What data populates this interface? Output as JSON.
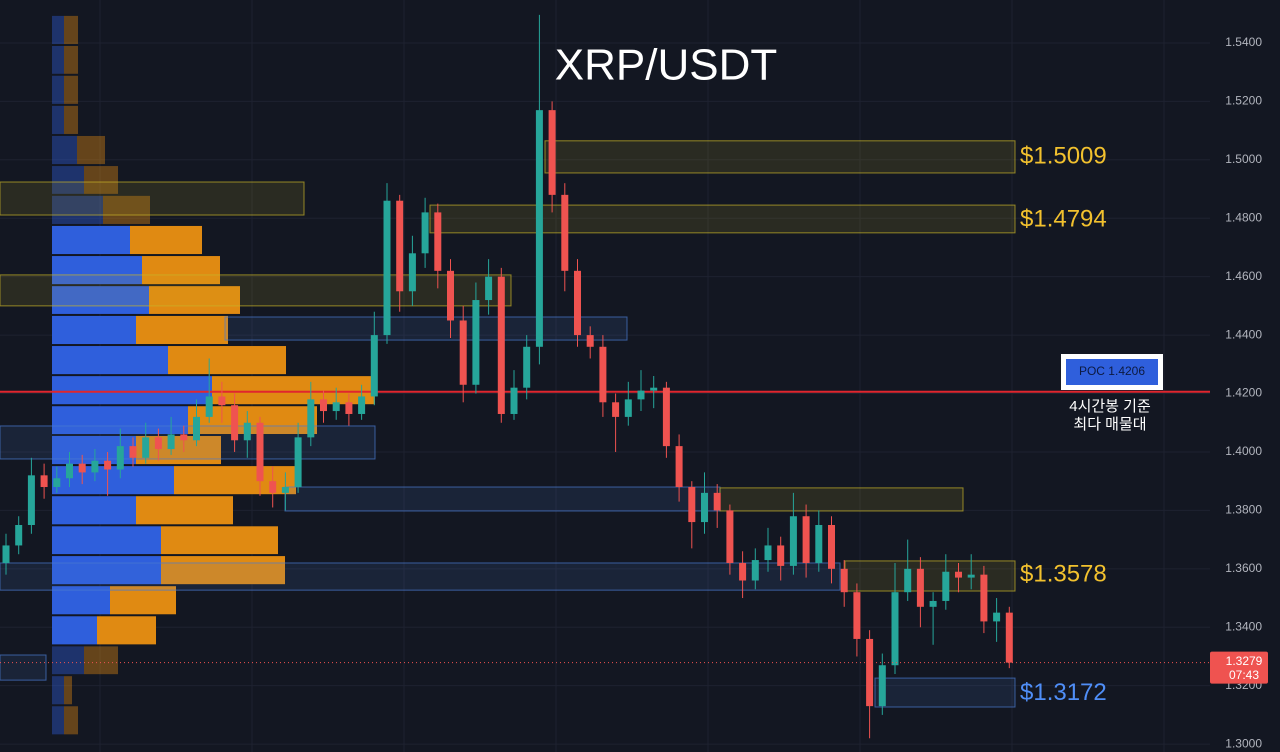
{
  "chart_data": {
    "type": "candlestick",
    "title": "XRP/USDT",
    "up_color": "#26a69a",
    "down_color": "#ef5350",
    "ylim": [
      1.2973,
      1.5547
    ],
    "yticks": [
      {
        "value": 1.3,
        "label": "1.3000"
      },
      {
        "value": 1.32,
        "label": "1.3200"
      },
      {
        "value": 1.34,
        "label": "1.3400"
      },
      {
        "value": 1.36,
        "label": "1.3600"
      },
      {
        "value": 1.38,
        "label": "1.3800"
      },
      {
        "value": 1.4,
        "label": "1.4000"
      },
      {
        "value": 1.42,
        "label": "1.4200"
      },
      {
        "value": 1.44,
        "label": "1.4400"
      },
      {
        "value": 1.46,
        "label": "1.4600"
      },
      {
        "value": 1.48,
        "label": "1.4800"
      },
      {
        "value": 1.5,
        "label": "1.5000"
      },
      {
        "value": 1.52,
        "label": "1.5200"
      },
      {
        "value": 1.54,
        "label": "1.5400"
      }
    ],
    "grid": true,
    "candles": [
      [
        1.362,
        1.372,
        1.358,
        1.368
      ],
      [
        1.368,
        1.378,
        1.365,
        1.375
      ],
      [
        1.375,
        1.398,
        1.372,
        1.392
      ],
      [
        1.392,
        1.396,
        1.384,
        1.388
      ],
      [
        1.388,
        1.395,
        1.386,
        1.391
      ],
      [
        1.391,
        1.4,
        1.388,
        1.396
      ],
      [
        1.396,
        1.399,
        1.389,
        1.393
      ],
      [
        1.393,
        1.401,
        1.39,
        1.397
      ],
      [
        1.397,
        1.4,
        1.385,
        1.394
      ],
      [
        1.394,
        1.408,
        1.391,
        1.402
      ],
      [
        1.402,
        1.405,
        1.395,
        1.398
      ],
      [
        1.398,
        1.41,
        1.396,
        1.405
      ],
      [
        1.405,
        1.408,
        1.397,
        1.401
      ],
      [
        1.401,
        1.412,
        1.399,
        1.406
      ],
      [
        1.406,
        1.409,
        1.4,
        1.404
      ],
      [
        1.404,
        1.418,
        1.402,
        1.412
      ],
      [
        1.412,
        1.432,
        1.41,
        1.419
      ],
      [
        1.419,
        1.424,
        1.41,
        1.416
      ],
      [
        1.416,
        1.42,
        1.4,
        1.404
      ],
      [
        1.404,
        1.414,
        1.398,
        1.41
      ],
      [
        1.41,
        1.412,
        1.385,
        1.39
      ],
      [
        1.39,
        1.395,
        1.381,
        1.386
      ],
      [
        1.386,
        1.393,
        1.38,
        1.388
      ],
      [
        1.388,
        1.41,
        1.386,
        1.405
      ],
      [
        1.405,
        1.424,
        1.402,
        1.418
      ],
      [
        1.418,
        1.421,
        1.41,
        1.414
      ],
      [
        1.414,
        1.422,
        1.411,
        1.417
      ],
      [
        1.417,
        1.42,
        1.409,
        1.413
      ],
      [
        1.413,
        1.423,
        1.411,
        1.419
      ],
      [
        1.419,
        1.448,
        1.416,
        1.44
      ],
      [
        1.44,
        1.492,
        1.437,
        1.486
      ],
      [
        1.486,
        1.488,
        1.448,
        1.455
      ],
      [
        1.455,
        1.474,
        1.45,
        1.468
      ],
      [
        1.468,
        1.487,
        1.463,
        1.482
      ],
      [
        1.482,
        1.485,
        1.456,
        1.462
      ],
      [
        1.462,
        1.466,
        1.439,
        1.445
      ],
      [
        1.445,
        1.45,
        1.417,
        1.423
      ],
      [
        1.423,
        1.458,
        1.42,
        1.452
      ],
      [
        1.452,
        1.466,
        1.447,
        1.46
      ],
      [
        1.46,
        1.463,
        1.41,
        1.413
      ],
      [
        1.413,
        1.428,
        1.411,
        1.422
      ],
      [
        1.422,
        1.44,
        1.418,
        1.436
      ],
      [
        1.436,
        1.5496,
        1.43,
        1.517
      ],
      [
        1.517,
        1.52,
        1.482,
        1.488
      ],
      [
        1.488,
        1.492,
        1.455,
        1.462
      ],
      [
        1.462,
        1.466,
        1.436,
        1.44
      ],
      [
        1.44,
        1.443,
        1.432,
        1.436
      ],
      [
        1.436,
        1.44,
        1.412,
        1.417
      ],
      [
        1.417,
        1.42,
        1.4,
        1.412
      ],
      [
        1.412,
        1.424,
        1.409,
        1.418
      ],
      [
        1.418,
        1.428,
        1.414,
        1.421
      ],
      [
        1.421,
        1.426,
        1.415,
        1.422
      ],
      [
        1.422,
        1.424,
        1.398,
        1.402
      ],
      [
        1.402,
        1.406,
        1.383,
        1.388
      ],
      [
        1.388,
        1.39,
        1.367,
        1.376
      ],
      [
        1.376,
        1.393,
        1.372,
        1.386
      ],
      [
        1.386,
        1.389,
        1.374,
        1.38
      ],
      [
        1.38,
        1.382,
        1.358,
        1.362
      ],
      [
        1.362,
        1.366,
        1.35,
        1.356
      ],
      [
        1.356,
        1.367,
        1.353,
        1.363
      ],
      [
        1.363,
        1.374,
        1.359,
        1.368
      ],
      [
        1.368,
        1.371,
        1.356,
        1.361
      ],
      [
        1.361,
        1.386,
        1.358,
        1.378
      ],
      [
        1.378,
        1.382,
        1.357,
        1.362
      ],
      [
        1.362,
        1.38,
        1.359,
        1.375
      ],
      [
        1.375,
        1.378,
        1.355,
        1.36
      ],
      [
        1.36,
        1.363,
        1.347,
        1.352
      ],
      [
        1.352,
        1.355,
        1.33,
        1.336
      ],
      [
        1.336,
        1.339,
        1.302,
        1.313
      ],
      [
        1.313,
        1.331,
        1.31,
        1.327
      ],
      [
        1.327,
        1.362,
        1.324,
        1.352
      ],
      [
        1.352,
        1.37,
        1.349,
        1.36
      ],
      [
        1.36,
        1.364,
        1.34,
        1.347
      ],
      [
        1.347,
        1.352,
        1.334,
        1.349
      ],
      [
        1.349,
        1.365,
        1.346,
        1.359
      ],
      [
        1.359,
        1.362,
        1.352,
        1.357
      ],
      [
        1.357,
        1.365,
        1.353,
        1.358
      ],
      [
        1.358,
        1.361,
        1.338,
        1.342
      ],
      [
        1.342,
        1.35,
        1.335,
        1.345
      ],
      [
        1.345,
        1.347,
        1.326,
        1.3279
      ]
    ],
    "zones": [
      {
        "low": 1.4955,
        "high": 1.5065,
        "color": "#c8b428",
        "level": {
          "value": 1.5009,
          "label": "$1.5009"
        }
      },
      {
        "low": 1.475,
        "high": 1.4845,
        "color": "#c8b428",
        "level": {
          "value": 1.4794,
          "label": "$1.4794"
        }
      },
      {
        "low": 1.3524,
        "high": 1.3627,
        "color": "#c8b428",
        "level": {
          "value": 1.3578,
          "label": "$1.3578"
        }
      },
      {
        "low": 1.3127,
        "high": 1.3226,
        "color": "#4a7bd0",
        "level": {
          "value": 1.3172,
          "label": "$1.3172"
        }
      },
      {
        "low": 1.4811,
        "high": 1.4924,
        "color": "#c8b428"
      },
      {
        "low": 1.45,
        "high": 1.4606,
        "color": "#c8b428"
      },
      {
        "low": 1.4383,
        "high": 1.4462,
        "color": "#4a7bd0"
      },
      {
        "low": 1.3976,
        "high": 1.4089,
        "color": "#4a7bd0"
      },
      {
        "low": 1.3798,
        "high": 1.388,
        "color": "#4a7bd0"
      },
      {
        "low": 1.3798,
        "high": 1.3877,
        "color": "#c8b428"
      },
      {
        "low": 1.3527,
        "high": 1.362,
        "color": "#4a7bd0"
      },
      {
        "low": 1.3219,
        "high": 1.3305,
        "color": "#4a7bd0"
      }
    ],
    "profile": {
      "buy_color": "#2f5fdc",
      "sell_color": "#e08a12",
      "value_area": {
        "low": 1.3338,
        "high": 1.4777
      },
      "edges": [
        1.5496,
        1.5393,
        1.5291,
        1.5188,
        1.5085,
        1.4982,
        1.488,
        1.4777,
        1.4674,
        1.4571,
        1.4469,
        1.4366,
        1.4263,
        1.416,
        1.4058,
        1.3955,
        1.3852,
        1.3749,
        1.3647,
        1.3544,
        1.3441,
        1.3338,
        1.3236,
        1.3133,
        1.303
      ],
      "rows": [
        [
          12,
          14
        ],
        [
          12,
          14
        ],
        [
          12,
          14
        ],
        [
          12,
          14
        ],
        [
          25,
          28
        ],
        [
          32,
          34
        ],
        [
          51,
          47
        ],
        [
          78,
          72
        ],
        [
          90,
          78
        ],
        [
          97,
          91
        ],
        [
          84,
          92
        ],
        [
          116,
          118
        ],
        [
          160,
          163
        ],
        [
          136,
          129
        ],
        [
          84,
          85
        ],
        [
          122,
          122
        ],
        [
          84,
          97
        ],
        [
          109,
          117
        ],
        [
          109,
          124
        ],
        [
          58,
          66
        ],
        [
          45,
          59
        ],
        [
          32,
          34
        ],
        [
          12,
          8
        ],
        [
          12,
          14
        ]
      ]
    },
    "poc": {
      "value": 1.4206,
      "label": "POC  1.4206",
      "color": "#e0262e",
      "note": [
        "4시간봉 기준",
        "최다 매물대"
      ]
    },
    "last_price": {
      "value": 1.3279,
      "label": "1.3279",
      "countdown": "07:43"
    }
  }
}
